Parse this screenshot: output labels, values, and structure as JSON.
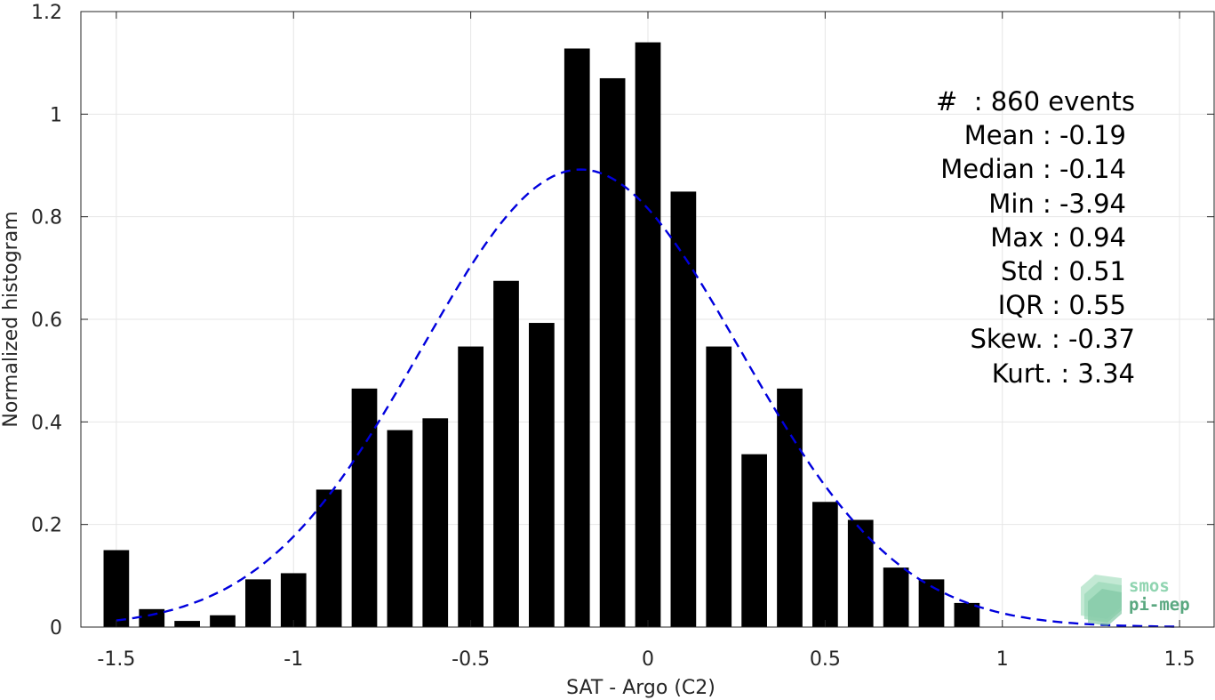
{
  "chart_data": {
    "type": "bar",
    "xlabel": "SAT - Argo (C2)",
    "ylabel": "Normalized histogram",
    "xlim": [
      -1.6,
      1.6
    ],
    "ylim": [
      0,
      1.2
    ],
    "x_ticks": [
      -1.5,
      -1,
      -0.5,
      0,
      0.5,
      1,
      1.5
    ],
    "x_tick_labels": [
      "-1.5",
      "-1",
      "-0.5",
      "0",
      "0.5",
      "1",
      "1.5"
    ],
    "y_ticks": [
      0,
      0.2,
      0.4,
      0.6,
      0.8,
      1,
      1.2
    ],
    "y_tick_labels": [
      "0",
      "0.2",
      "0.4",
      "0.6",
      "0.8",
      "1",
      "1.2"
    ],
    "grid": true,
    "bin_width": 0.1,
    "bar_color": "#000000",
    "bins": [
      {
        "x": -1.5,
        "y": 0.15
      },
      {
        "x": -1.4,
        "y": 0.035
      },
      {
        "x": -1.3,
        "y": 0.012
      },
      {
        "x": -1.2,
        "y": 0.023
      },
      {
        "x": -1.1,
        "y": 0.093
      },
      {
        "x": -1.0,
        "y": 0.105
      },
      {
        "x": -0.9,
        "y": 0.268
      },
      {
        "x": -0.8,
        "y": 0.465
      },
      {
        "x": -0.7,
        "y": 0.384
      },
      {
        "x": -0.6,
        "y": 0.407
      },
      {
        "x": -0.5,
        "y": 0.547
      },
      {
        "x": -0.4,
        "y": 0.675
      },
      {
        "x": -0.3,
        "y": 0.593
      },
      {
        "x": -0.2,
        "y": 1.128
      },
      {
        "x": -0.1,
        "y": 1.07
      },
      {
        "x": 0.0,
        "y": 1.14
      },
      {
        "x": 0.1,
        "y": 0.849
      },
      {
        "x": 0.2,
        "y": 0.547
      },
      {
        "x": 0.3,
        "y": 0.337
      },
      {
        "x": 0.4,
        "y": 0.465
      },
      {
        "x": 0.5,
        "y": 0.244
      },
      {
        "x": 0.6,
        "y": 0.209
      },
      {
        "x": 0.7,
        "y": 0.116
      },
      {
        "x": 0.8,
        "y": 0.093
      },
      {
        "x": 0.9,
        "y": 0.047
      }
    ],
    "fit_curve": {
      "style": "dashed",
      "color": "#0000dd",
      "x_min": -1.5,
      "x_max": 1.5,
      "mean": -0.19,
      "std": 0.45,
      "peak": 0.892
    },
    "stats_lines": [
      "#  : 860 events",
      "Mean : -0.19",
      "Median : -0.14",
      "Min : -3.94",
      "Max : 0.94",
      "Std : 0.51",
      "IQR : 0.55",
      "Skew. : -0.37",
      "Kurt. : 3.34"
    ]
  },
  "logo": {
    "line1": "smos",
    "line2": "pi-mep",
    "color_light": "#8fd4b0",
    "color_dark": "#5aa880"
  }
}
